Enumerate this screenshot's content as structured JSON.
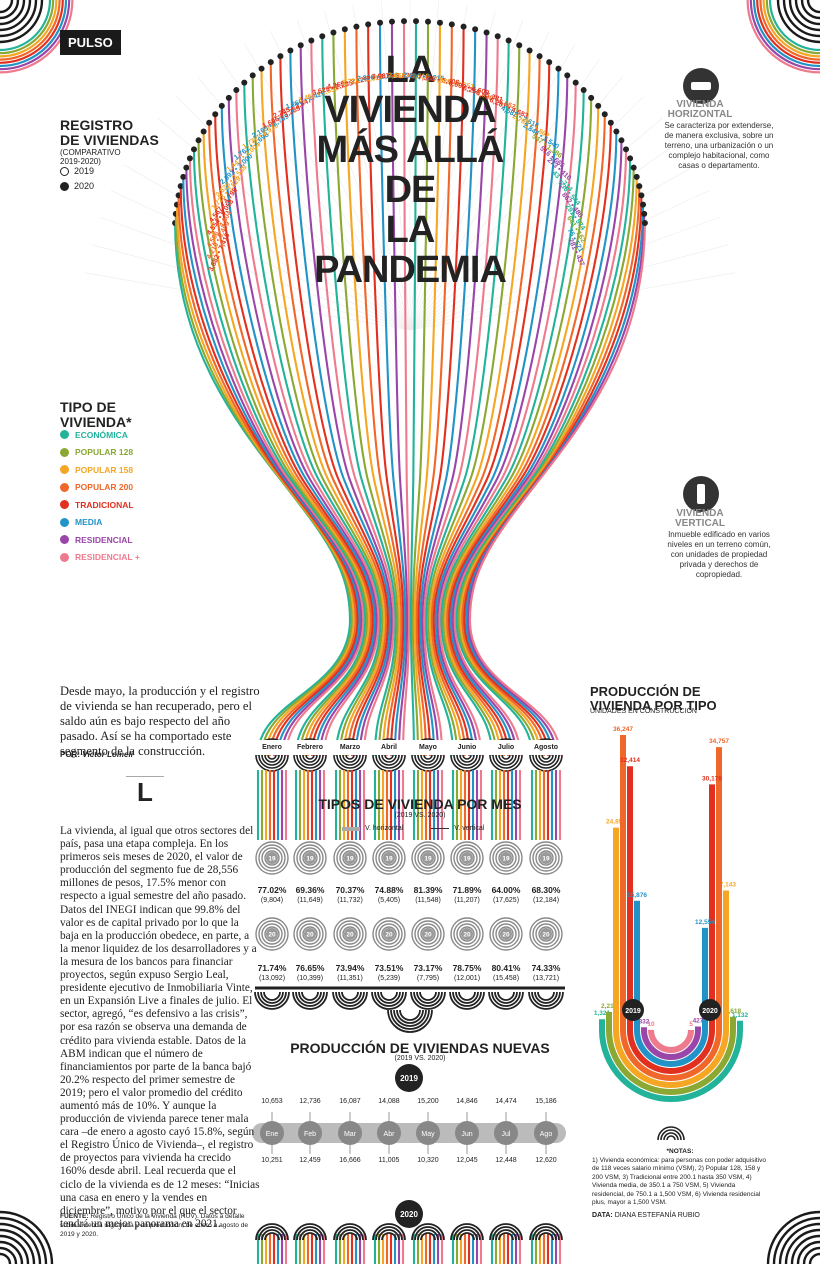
{
  "header": {
    "section_tag": "PULSO",
    "title_lines": [
      "LA",
      "VIVIENDA",
      "MÁS ALLÁ DE",
      "LA PANDEMIA"
    ]
  },
  "registro": {
    "title_lines": [
      "REGISTRO",
      "DE VIVIENDAS"
    ],
    "subtitle_lines": [
      "(COMPARATIVO",
      "2019-2020)"
    ],
    "legend": [
      {
        "label": "2019",
        "style": "hollow"
      },
      {
        "label": "2020",
        "style": "filled"
      }
    ]
  },
  "tipo_vivienda": {
    "title_lines": [
      "TIPO DE",
      "VIVIENDA*"
    ],
    "items": [
      {
        "label": "ECONÓMICA",
        "color": "#22b39a"
      },
      {
        "label": "POPULAR 128",
        "color": "#8aa832"
      },
      {
        "label": "POPULAR 158",
        "color": "#f5a623"
      },
      {
        "label": "POPULAR 200",
        "color": "#f0672a"
      },
      {
        "label": "TRADICIONAL",
        "color": "#e1301f"
      },
      {
        "label": "MEDIA",
        "color": "#2293c6"
      },
      {
        "label": "RESIDENCIAL",
        "color": "#9a46a8"
      },
      {
        "label": "RESIDENCIAL +",
        "color": "#ee7a8e"
      }
    ]
  },
  "vivienda_horizontal": {
    "title_lines": [
      "VIVIENDA",
      "HORIZONTAL"
    ],
    "text": "Se caracteriza por extenderse, de manera exclusiva, sobre un terreno, una urbanización o un complejo habitacional, como casas o departamento.",
    "icon": "horizontal-house-icon"
  },
  "vivienda_vertical": {
    "title_lines": [
      "VIVIENDA",
      "VERTICAL"
    ],
    "text": "Inmueble edificado en varios niveles en un terreno común, con unidades de propiedad privada y derechos de copropiedad.",
    "icon": "vertical-building-icon"
  },
  "tree_labels": [
    {
      "text": "3,882 • 7,410",
      "c": "#e1301f"
    },
    {
      "text": "4,210 • 6,409",
      "c": "#f0672a"
    },
    {
      "text": "4,566 • 4,804",
      "c": "#f0672a"
    },
    {
      "text": "4,554 • 5,058",
      "c": "#e1301f"
    },
    {
      "text": "4,567 • 4,798",
      "c": "#e1301f"
    },
    {
      "text": "1,723 • 3,829",
      "c": "#f5a623"
    },
    {
      "text": "2,625 • 3,538",
      "c": "#f5a623"
    },
    {
      "text": "2,091 • 3,000",
      "c": "#2293c6"
    },
    {
      "text": "1,442 • 3,004",
      "c": "#f5a623"
    },
    {
      "text": "1,762 • 2,698",
      "c": "#2293c6"
    },
    {
      "text": "1,732 • 2,916",
      "c": "#f5a623"
    },
    {
      "text": "2,165 • 2,769",
      "c": "#2293c6"
    },
    {
      "text": "1,606 • 3,289",
      "c": "#e1301f"
    },
    {
      "text": "2,245 • 3,847",
      "c": "#e1301f"
    },
    {
      "text": "1,260 • 2,426",
      "c": "#2293c6"
    },
    {
      "text": "1,451 • 1,651",
      "c": "#f5a623"
    },
    {
      "text": "3,625 • 2,235",
      "c": "#e1301f"
    },
    {
      "text": "4,369 • 3,125",
      "c": "#e1301f"
    },
    {
      "text": "2,725 • 1,818",
      "c": "#f5a623"
    },
    {
      "text": "2,806 • 1,504",
      "c": "#2293c6"
    },
    {
      "text": "3,987 • 3,834",
      "c": "#e1301f"
    },
    {
      "text": "2,659 • 1,518",
      "c": "#f5a623"
    },
    {
      "text": "2,930 • 2,215",
      "c": "#2293c6"
    },
    {
      "text": "7,395 • 5,406",
      "c": "#e1301f"
    },
    {
      "text": "7,029 • 2,651",
      "c": "#f5a623"
    },
    {
      "text": "6,690 • 6,609",
      "c": "#e1301f"
    },
    {
      "text": "6,255 • 5,381",
      "c": "#e1301f"
    },
    {
      "text": "6,630 • 3,862",
      "c": "#f0672a"
    },
    {
      "text": "6,281 • 4,683",
      "c": "#e1301f"
    },
    {
      "text": "4,582 • 2,616",
      "c": "#2293c6"
    },
    {
      "text": "2,782 • 1,862",
      "c": "#f5a623"
    },
    {
      "text": "2,846 • 2,540",
      "c": "#2293c6"
    },
    {
      "text": "547 • 1,386",
      "c": "#8aa832"
    },
    {
      "text": "516 • 665",
      "c": "#9a46a8"
    },
    {
      "text": "273 • 410",
      "c": "#9a46a8"
    },
    {
      "text": "43 • 714",
      "c": "#22b39a"
    },
    {
      "text": "536 • 544",
      "c": "#22b39a"
    },
    {
      "text": "862 • 480",
      "c": "#9a46a8"
    },
    {
      "text": "291 • 574",
      "c": "#22b39a"
    },
    {
      "text": "641 • 162",
      "c": "#8aa832"
    },
    {
      "text": "75 • 521",
      "c": "#2293c6"
    },
    {
      "text": "281 • 437",
      "c": "#9a46a8"
    }
  ],
  "intro": {
    "text": "Desde mayo, la producción y el registro de vivienda se han recuperado, pero el saldo aún es bajo respecto del año pasado. Así se ha comportado este segmento de la construcción.",
    "byline_label": "POR:",
    "byline_name": "Víctor Lomelí"
  },
  "dropcap": "L",
  "body_text": "La vivienda, al igual que otros sectores del país, pasa una etapa compleja. En los primeros seis meses de 2020, el valor de producción del segmento fue de 28,556 millones de pesos, 17.5% menor con respecto a igual semestre del año pasado. Datos del INEGI indican que 99.8% del valor es de capital privado por lo que la baja en la producción obedece, en parte, a la menor liquidez de los desarrolladores y a la mesura de los bancos para financiar proyectos, según expuso Sergio Leal, presidente ejecutivo de Inmobiliaria Vinte, en un Expansión Live a finales de julio. El sector, agregó, “es defensivo a las crisis”, por esa razón se observa una demanda de crédito para vivienda estable. Datos de la ABM indican que el número de financiamientos por parte de la banca bajó 20.2% respecto del primer semestre de 2019; pero el valor promedio del crédito aumentó más de 10%. Y aunque la producción de vivienda parece tener mala cara –de enero a agosto cayó 15.8%, según el Registro Único de Vivienda–, el registro de proyectos para vivienda ha crecido 160% desde abril. Leal recuerda que el ciclo de la vivienda es de 12 meses: “Inicias una casa en enero y la vendes en diciembre”, motivo por el que el sector tendrá un mejor panorama en 2021.",
  "fuente": {
    "label": "FUENTE:",
    "text": "Registro Único de la Vivienda (RUV). Datos a detalle sobre vivienda registrada y en producción, de enero a agosto de 2019 y 2020."
  },
  "months": [
    "Enero",
    "Febrero",
    "Marzo",
    "Abril",
    "Mayo",
    "Junio",
    "Julio",
    "Agosto"
  ],
  "tipos_mes": {
    "title": "TIPOS DE VIVIENDA POR MES",
    "subtitle": "(2019 VS. 2020)",
    "legend_h": "V. horizontal",
    "legend_v": "V. vertical",
    "badge_2019": "19",
    "badge_2020": "20",
    "pct_2019": [
      "77.02%",
      "69.36%",
      "70.37%",
      "74.88%",
      "81.39%",
      "71.89%",
      "64.00%",
      "68.30%"
    ],
    "total_2019": [
      "(9,804)",
      "(11,649)",
      "(11,732)",
      "(5,405)",
      "(11,548)",
      "(11,207)",
      "(17,625)",
      "(12,184)"
    ],
    "pct_2020": [
      "71.74%",
      "76.65%",
      "73.94%",
      "73.51%",
      "73.17%",
      "78.75%",
      "80.41%",
      "74.33%"
    ],
    "total_2020": [
      "(13,092)",
      "(10,399)",
      "(11,351)",
      "(5,239)",
      "(7,795)",
      "(12,001)",
      "(15,458)",
      "(13,721)"
    ]
  },
  "produccion_nuevas": {
    "title": "PRODUCCIÓN DE VIVIENDAS NUEVAS",
    "subtitle": "(2019 VS. 2020)",
    "badge_2019": "2019",
    "badge_2020": "2020",
    "month_abbr": [
      "Ene",
      "Feb",
      "Mar",
      "Abr",
      "May",
      "Jun",
      "Jul",
      "Ago"
    ],
    "values_2019": [
      "10,653",
      "12,736",
      "16,087",
      "14,088",
      "15,200",
      "14,846",
      "14,474",
      "15,186"
    ],
    "values_2020": [
      "10,251",
      "12,459",
      "16,666",
      "11,005",
      "10,320",
      "12,045",
      "12,448",
      "12,620"
    ]
  },
  "produccion_tipo": {
    "title_lines": [
      "PRODUCCIÓN DE",
      "VIVIENDA POR TIPO"
    ],
    "subtitle": "UNIDADES EN CONSTRUCCIÓN",
    "badge_2019": "2019",
    "badge_2020": "2020"
  },
  "chart_data": {
    "type": "bar",
    "title": "PRODUCCIÓN DE VIVIENDA POR TIPO",
    "ylabel": "UNIDADES EN CONSTRUCCIÓN",
    "categories": [
      "ECONÓMICA",
      "POPULAR 128",
      "POPULAR 158",
      "POPULAR 200",
      "TRADICIONAL",
      "MEDIA",
      "RESIDENCIAL",
      "RESIDENCIAL +"
    ],
    "series": [
      {
        "name": "2019",
        "values": [
          1321,
          2211,
          24859,
          36247,
          32414,
          15876,
          332,
          10
        ]
      },
      {
        "name": "2020",
        "values": [
          1132,
          1618,
          17143,
          34757,
          30178,
          12554,
          427,
          5
        ]
      }
    ],
    "value_labels_2019": [
      "1,321",
      "2,211",
      "24,859",
      "36,247",
      "32,414",
      "15,876",
      "332",
      "10"
    ],
    "value_labels_2020": [
      "1,132",
      "1,618",
      "17,143",
      "34,757",
      "30,178",
      "12,554",
      "427",
      "5"
    ],
    "ylim": [
      0,
      36247
    ]
  },
  "notes": {
    "title": "*NOTAS:",
    "text": "1) Vivienda económica: para personas con poder adquisitivo de 118 veces salario mínimo (VSM), 2) Popular 128, 158 y 200 VSM, 3) Tradicional entre 200.1 hasta 350 VSM, 4) Vivienda media, de 350.1 a 750 VSM, 5) Vivienda residencial, de 750.1 a 1,500 VSM, 6) Vivienda residencial plus, mayor a 1,500 VSM."
  },
  "data_credit": {
    "label": "DATA:",
    "name": "DIANA ESTEFANÍA RUBIO"
  }
}
